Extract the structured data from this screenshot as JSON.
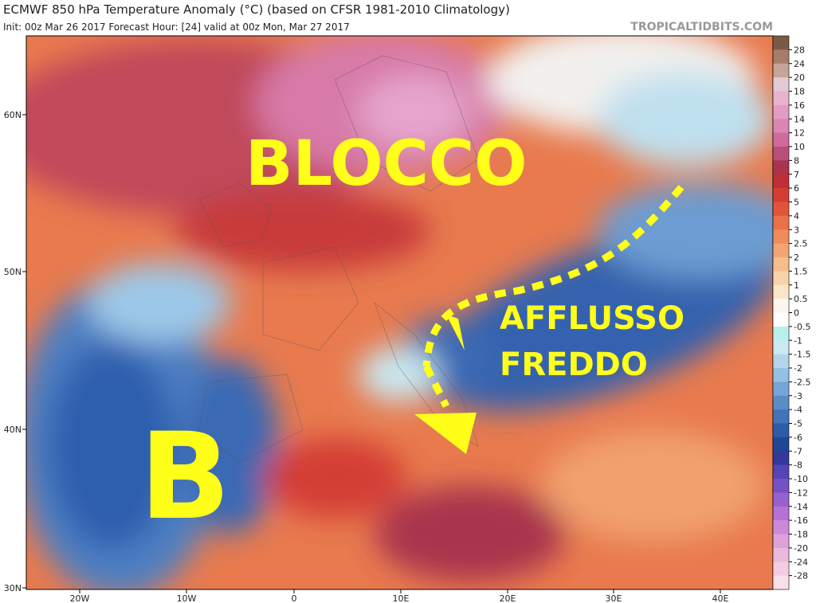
{
  "header": {
    "title": "ECMWF 850 hPa Temperature Anomaly (°C) (based on CFSR 1981-2010 Climatology)",
    "subtitle": "Init: 00z Mar 26 2017   Forecast Hour: [24]   valid at 00z Mon, Mar 27 2017",
    "credit": "TROPICALTIDBITS.COM"
  },
  "map": {
    "lat_labels": [
      "60N",
      "50N",
      "40N",
      "30N"
    ],
    "lon_labels": [
      "20W",
      "10W",
      "0",
      "10E",
      "20E",
      "30E",
      "40E"
    ]
  },
  "colorbar": {
    "labels": [
      "28",
      "24",
      "20",
      "18",
      "16",
      "14",
      "12",
      "10",
      "8",
      "7",
      "6",
      "5",
      "4",
      "3",
      "2.5",
      "2",
      "1.5",
      "1",
      "0.5",
      "0",
      "-0.5",
      "-1",
      "-1.5",
      "-2",
      "-2.5",
      "-3",
      "-4",
      "-5",
      "-6",
      "-7",
      "-8",
      "-10",
      "-12",
      "-14",
      "-16",
      "-18",
      "-20",
      "-24",
      "-28"
    ],
    "colors": [
      "#7b5a44",
      "#a57d6a",
      "#c6a497",
      "#e2c9d3",
      "#e9b3cf",
      "#e39cc2",
      "#db85b3",
      "#cd6b9c",
      "#b94f78",
      "#a8344d",
      "#c02f37",
      "#d43d34",
      "#e0553a",
      "#ea7047",
      "#f08b5a",
      "#f3a472",
      "#f6bd8d",
      "#f8d3aa",
      "#f9e6c9",
      "#fdf6ee",
      "#ffffff",
      "#b8f0ee",
      "#cde9f2",
      "#b3d6ec",
      "#94c0e3",
      "#76a6d7",
      "#5a8cc8",
      "#4274bc",
      "#2d5cab",
      "#1f4894",
      "#33389a",
      "#5544b4",
      "#7550c6",
      "#9660d0",
      "#b472d6",
      "#cc89d8",
      "#dca2d9",
      "#e9b9dc",
      "#f2cde2",
      "#f8dfe9"
    ]
  },
  "annotations": {
    "block": "BLOCCO",
    "low": "B",
    "flow_1": "AFFLUSSO",
    "flow_2": "FREDDO"
  }
}
